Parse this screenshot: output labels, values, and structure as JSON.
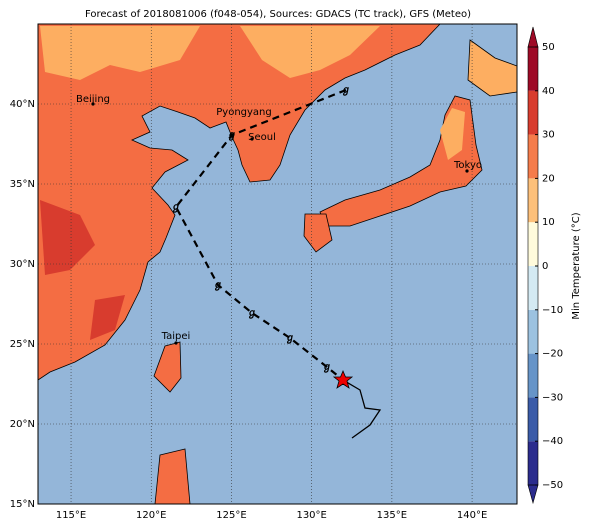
{
  "title": "Forecast of 2018081006 (f048-054), Sources: GDACS (TC track), GFS (Meteo)",
  "map": {
    "lon_range": [
      112.94,
      142.8
    ],
    "lat_range": [
      15,
      45
    ],
    "lon_ticks": [
      {
        "value": 115,
        "label": "115°E"
      },
      {
        "value": 120,
        "label": "120°E"
      },
      {
        "value": 125,
        "label": "125°E"
      },
      {
        "value": 130,
        "label": "130°E"
      },
      {
        "value": 135,
        "label": "135°E"
      },
      {
        "value": 140,
        "label": "140°E"
      }
    ],
    "lat_ticks": [
      {
        "value": 15,
        "label": "15°N"
      },
      {
        "value": 20,
        "label": "20°N"
      },
      {
        "value": 25,
        "label": "25°N"
      },
      {
        "value": 30,
        "label": "30°N"
      },
      {
        "value": 35,
        "label": "35°N"
      },
      {
        "value": 40,
        "label": "40°N"
      }
    ],
    "cities": [
      "Beijing",
      "Pyongyang",
      "Seoul",
      "Tokyo",
      "Taipei"
    ]
  },
  "colorbar": {
    "label": "Min Temperature (°C)",
    "range": [
      -50,
      50
    ],
    "ticks": [
      {
        "value": -50,
        "label": "−50"
      },
      {
        "value": -40,
        "label": "−40"
      },
      {
        "value": -30,
        "label": "−30"
      },
      {
        "value": -20,
        "label": "−20"
      },
      {
        "value": -10,
        "label": "−10"
      },
      0,
      10,
      20,
      30,
      40,
      50
    ],
    "colors": [
      "#2b2c8d",
      "#3a5ba8",
      "#6694c8",
      "#9cc2e0",
      "#d4eaf3",
      "#fffbdc",
      "#fdc07a",
      "#f57c4b",
      "#d83c2e",
      "#9e0a26"
    ]
  }
}
